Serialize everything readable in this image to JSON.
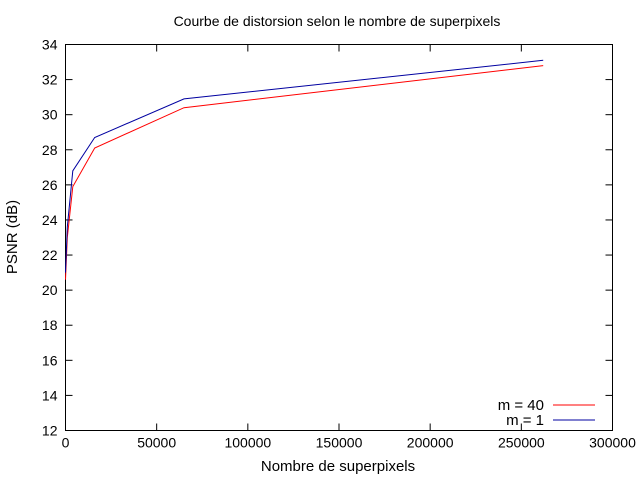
{
  "chart_data": {
    "type": "line",
    "title": "Courbe de distorsion selon le nombre de superpixels",
    "xlabel": "Nombre de superpixels",
    "ylabel": "PSNR (dB)",
    "xlim": [
      0,
      300000
    ],
    "ylim": [
      12,
      34
    ],
    "x_ticks": [
      0,
      50000,
      100000,
      150000,
      200000,
      250000,
      300000
    ],
    "x_tick_labels": [
      "0",
      "50000",
      "100000",
      "150000",
      "200000",
      "250000",
      "300000"
    ],
    "y_ticks": [
      12,
      14,
      16,
      18,
      20,
      22,
      24,
      26,
      28,
      30,
      32,
      34
    ],
    "y_tick_labels": [
      "12",
      "14",
      "16",
      "18",
      "20",
      "22",
      "24",
      "26",
      "28",
      "30",
      "32",
      "34"
    ],
    "grid": false,
    "legend_position": "bottom-right",
    "series": [
      {
        "name": "m = 40",
        "color": "#ff0000",
        "x": [
          0,
          1000,
          4000,
          16000,
          65000,
          262000
        ],
        "y": [
          20.6,
          23.0,
          25.9,
          28.1,
          30.4,
          32.8
        ]
      },
      {
        "name": "m = 1",
        "color": "#0000a0",
        "x": [
          0,
          1000,
          4000,
          16000,
          65000,
          262000
        ],
        "y": [
          21.0,
          23.6,
          26.8,
          28.7,
          30.9,
          33.1
        ]
      }
    ]
  }
}
